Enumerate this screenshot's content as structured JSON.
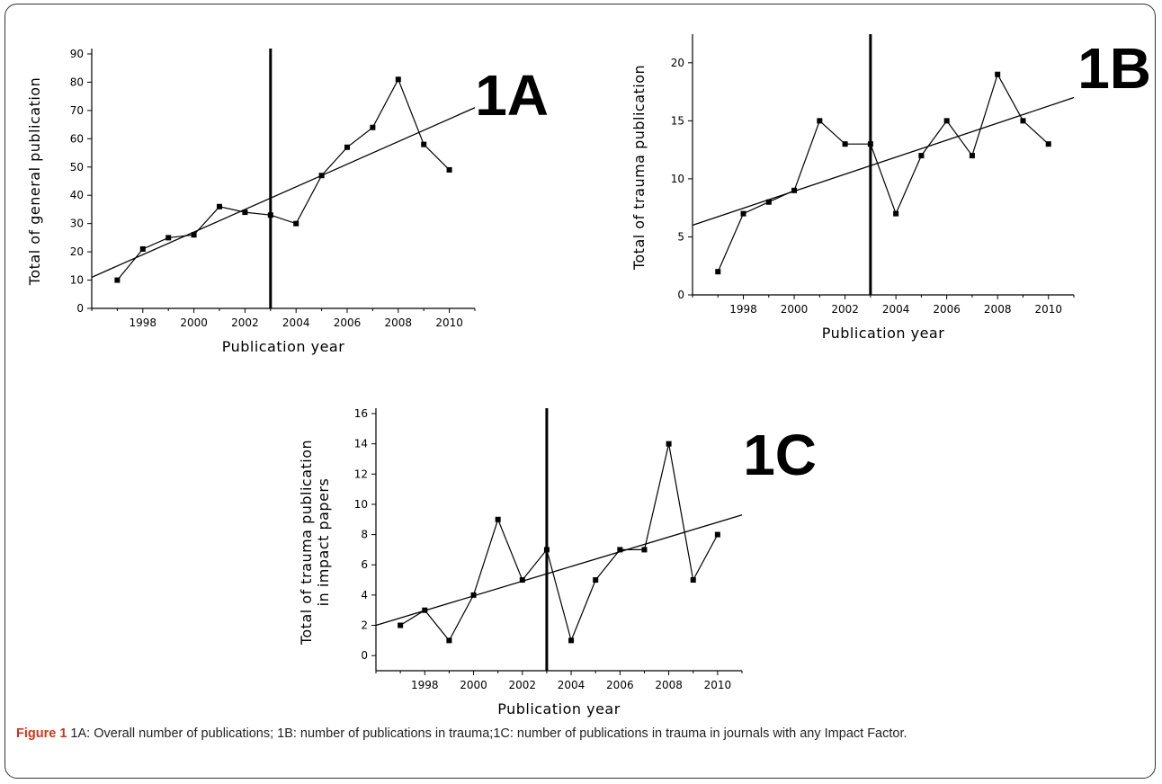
{
  "chart_data": [
    {
      "type": "line",
      "panel": "1A",
      "xlabel": "Publication year",
      "ylabel": "Total of general publication",
      "xlim": [
        1996,
        2011
      ],
      "ylim": [
        0,
        90
      ],
      "x_ticks": [
        1998,
        2000,
        2002,
        2004,
        2006,
        2008,
        2010
      ],
      "y_ticks": [
        0,
        10,
        20,
        30,
        40,
        50,
        60,
        70,
        80,
        90
      ],
      "x": [
        1997,
        1998,
        1999,
        2000,
        2001,
        2002,
        2003,
        2004,
        2005,
        2006,
        2007,
        2008,
        2009,
        2010
      ],
      "values": [
        10,
        21,
        25,
        26,
        36,
        34,
        33,
        30,
        47,
        57,
        64,
        81,
        58,
        49
      ],
      "trendline": {
        "x": [
          1996,
          2011
        ],
        "y": [
          11,
          71
        ]
      },
      "vertical_line_x": 2003
    },
    {
      "type": "line",
      "panel": "1B",
      "xlabel": "Publication year",
      "ylabel": "Total of trauma publication",
      "xlim": [
        1996,
        2011
      ],
      "ylim": [
        0,
        22
      ],
      "x_ticks": [
        1998,
        2000,
        2002,
        2004,
        2006,
        2008,
        2010
      ],
      "y_ticks": [
        0,
        5,
        10,
        15,
        20
      ],
      "x": [
        1997,
        1998,
        1999,
        2000,
        2001,
        2002,
        2003,
        2004,
        2005,
        2006,
        2007,
        2008,
        2009,
        2010
      ],
      "values": [
        2,
        7,
        8,
        9,
        15,
        13,
        13,
        7,
        12,
        15,
        12,
        19,
        15,
        13
      ],
      "trendline": {
        "x": [
          1996,
          2011
        ],
        "y": [
          6,
          17
        ]
      },
      "vertical_line_x": 2003
    },
    {
      "type": "line",
      "panel": "1C",
      "xlabel": "Publication year",
      "ylabel_lines": [
        "Total of trauma publication",
        "in impact papers"
      ],
      "xlim": [
        1996,
        2011
      ],
      "ylim": [
        -1,
        16
      ],
      "x_ticks": [
        1998,
        2000,
        2002,
        2004,
        2006,
        2008,
        2010
      ],
      "y_ticks": [
        0,
        2,
        4,
        6,
        8,
        10,
        12,
        14,
        16
      ],
      "x": [
        1997,
        1998,
        1999,
        2000,
        2001,
        2002,
        2003,
        2004,
        2005,
        2006,
        2007,
        2008,
        2009,
        2010
      ],
      "values": [
        2,
        3,
        1,
        4,
        9,
        5,
        7,
        1,
        5,
        7,
        7,
        14,
        5,
        8
      ],
      "trendline": {
        "x": [
          1996,
          2011
        ],
        "y": [
          2,
          9.3
        ]
      },
      "vertical_line_x": 2003
    }
  ],
  "caption": {
    "label": "Figure 1",
    "text": " 1A: Overall number of publications; 1B: number of publications in trauma;1C: number of publications in trauma in journals with any Impact Factor."
  },
  "colors": {
    "ink": "#000000",
    "caption_label": "#d0341c",
    "caption_text": "#222222"
  }
}
